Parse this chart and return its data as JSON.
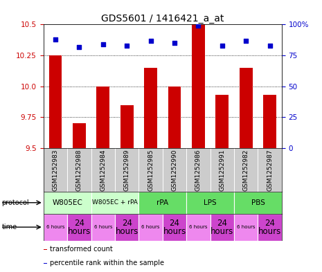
{
  "title": "GDS5601 / 1416421_a_at",
  "samples": [
    "GSM1252983",
    "GSM1252988",
    "GSM1252984",
    "GSM1252989",
    "GSM1252985",
    "GSM1252990",
    "GSM1252986",
    "GSM1252991",
    "GSM1252982",
    "GSM1252987"
  ],
  "bar_values": [
    10.25,
    9.7,
    10.0,
    9.85,
    10.15,
    10.0,
    10.5,
    9.93,
    10.15,
    9.93
  ],
  "dot_values": [
    88,
    82,
    84,
    83,
    87,
    85,
    99,
    83,
    87,
    83
  ],
  "ylim_left": [
    9.5,
    10.5
  ],
  "ylim_right": [
    0,
    100
  ],
  "yticks_left": [
    9.5,
    9.75,
    10.0,
    10.25,
    10.5
  ],
  "yticks_right": [
    0,
    25,
    50,
    75,
    100
  ],
  "bar_color": "#cc0000",
  "dot_color": "#0000cc",
  "grid_color": "#000000",
  "bg_color": "#ffffff",
  "sample_bg_color": "#cccccc",
  "protocol_entries": [
    {
      "label": "W805EC",
      "span": [
        0,
        2
      ],
      "color": "#ccffcc"
    },
    {
      "label": "W805EC + rPA",
      "span": [
        2,
        4
      ],
      "color": "#ccffcc"
    },
    {
      "label": "rPA",
      "span": [
        4,
        6
      ],
      "color": "#66dd66"
    },
    {
      "label": "LPS",
      "span": [
        6,
        8
      ],
      "color": "#66dd66"
    },
    {
      "label": "PBS",
      "span": [
        8,
        10
      ],
      "color": "#66dd66"
    }
  ],
  "time_entries": [
    {
      "label": "6 hours",
      "span": [
        0,
        1
      ],
      "color": "#ee88ee",
      "small": true
    },
    {
      "label": "24\nhours",
      "span": [
        1,
        2
      ],
      "color": "#cc44cc",
      "small": false
    },
    {
      "label": "6 hours",
      "span": [
        2,
        3
      ],
      "color": "#ee88ee",
      "small": true
    },
    {
      "label": "24\nhours",
      "span": [
        3,
        4
      ],
      "color": "#cc44cc",
      "small": false
    },
    {
      "label": "6 hours",
      "span": [
        4,
        5
      ],
      "color": "#ee88ee",
      "small": true
    },
    {
      "label": "24\nhours",
      "span": [
        5,
        6
      ],
      "color": "#cc44cc",
      "small": false
    },
    {
      "label": "6 hours",
      "span": [
        6,
        7
      ],
      "color": "#ee88ee",
      "small": true
    },
    {
      "label": "24\nhours",
      "span": [
        7,
        8
      ],
      "color": "#cc44cc",
      "small": false
    },
    {
      "label": "6 hours",
      "span": [
        8,
        9
      ],
      "color": "#ee88ee",
      "small": true
    },
    {
      "label": "24\nhours",
      "span": [
        9,
        10
      ],
      "color": "#cc44cc",
      "small": false
    }
  ],
  "legend_items": [
    {
      "color": "#cc0000",
      "label": "transformed count"
    },
    {
      "color": "#0000cc",
      "label": "percentile rank within the sample"
    }
  ],
  "left_axis_color": "#cc0000",
  "right_axis_color": "#0000cc",
  "title_fontsize": 10,
  "tick_fontsize": 7.5,
  "sample_fontsize": 6.5,
  "legend_fontsize": 7
}
